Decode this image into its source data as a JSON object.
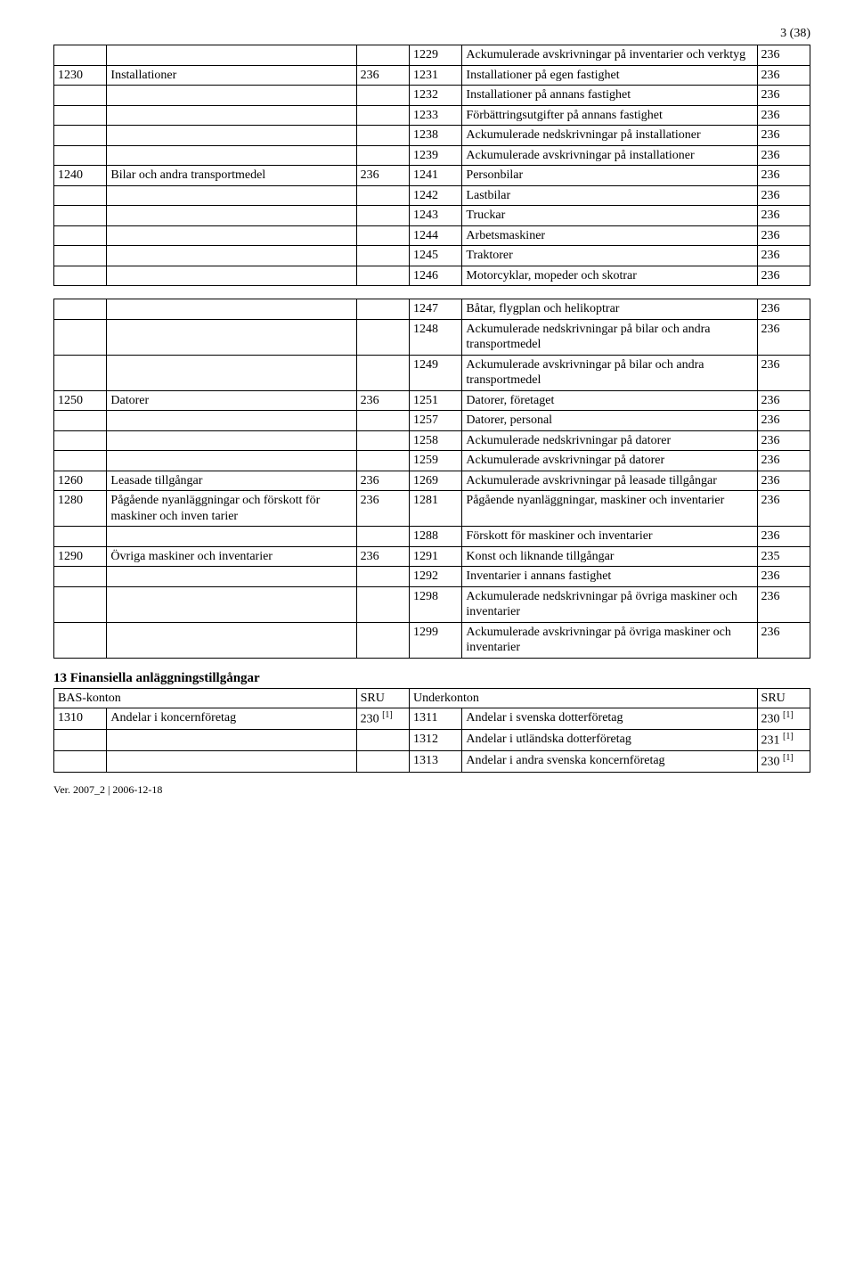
{
  "page_number": "3 (38)",
  "footer": "Ver. 2007_2 | 2006-12-18",
  "section1_rows": [
    [
      "",
      "",
      "",
      "1229",
      "Ackumulerade avskrivningar på inventarier och verktyg",
      "236"
    ],
    [
      "1230",
      "Installationer",
      "236",
      "1231",
      "Installationer på egen fastighet",
      "236"
    ],
    [
      "",
      "",
      "",
      "1232",
      "Installationer på annans fastighet",
      "236"
    ],
    [
      "",
      "",
      "",
      "1233",
      "Förbättringsutgifter på annans fastighet",
      "236"
    ],
    [
      "",
      "",
      "",
      "1238",
      "Ackumulerade nedskrivningar på installationer",
      "236"
    ],
    [
      "",
      "",
      "",
      "1239",
      "Ackumulerade avskrivningar på installationer",
      "236"
    ],
    [
      "1240",
      "Bilar och andra transportmedel",
      "236",
      "1241",
      "Personbilar",
      "236"
    ],
    [
      "",
      "",
      "",
      "1242",
      "Lastbilar",
      "236"
    ],
    [
      "",
      "",
      "",
      "1243",
      "Truckar",
      "236"
    ],
    [
      "",
      "",
      "",
      "1244",
      "Arbetsmaskiner",
      "236"
    ],
    [
      "",
      "",
      "",
      "1245",
      "Traktorer",
      "236"
    ],
    [
      "",
      "",
      "",
      "1246",
      "Motorcyklar, mopeder och skotrar",
      "236"
    ]
  ],
  "section2_rows": [
    [
      "",
      "",
      "",
      "1247",
      "Båtar, flygplan och helikoptrar",
      "236"
    ],
    [
      "",
      "",
      "",
      "1248",
      "Ackumulerade nedskrivningar på bilar och andra transportmedel",
      "236"
    ],
    [
      "",
      "",
      "",
      "1249",
      "Ackumulerade avskrivningar på bilar och andra transportmedel",
      "236"
    ],
    [
      "1250",
      "Datorer",
      "236",
      "1251",
      "Datorer, företaget",
      "236"
    ],
    [
      "",
      "",
      "",
      "1257",
      "Datorer, personal",
      "236"
    ],
    [
      "",
      "",
      "",
      "1258",
      "Ackumulerade nedskrivningar på datorer",
      "236"
    ],
    [
      "",
      "",
      "",
      "1259",
      "Ackumulerade avskrivningar på datorer",
      "236"
    ],
    [
      "1260",
      "Leasade tillgångar",
      "236",
      "1269",
      "Ackumulerade avskrivningar på leasade tillgångar",
      "236"
    ],
    [
      "1280",
      "Pågående nyanläggningar och förskott för maskiner och inven tarier",
      "236",
      "1281",
      "Pågående nyanläggningar, maskiner och inventarier",
      "236"
    ],
    [
      "",
      "",
      "",
      "1288",
      "Förskott för maskiner och inventarier",
      "236"
    ],
    [
      "1290",
      "Övriga maskiner och inventarier",
      "236",
      "1291",
      "Konst och liknande tillgångar",
      "235"
    ],
    [
      "",
      "",
      "",
      "1292",
      "Inventarier i annans fastighet",
      "236"
    ],
    [
      "",
      "",
      "",
      "1298",
      "Ackumulerade nedskrivningar på övriga maskiner och inventarier",
      "236"
    ],
    [
      "",
      "",
      "",
      "1299",
      "Ackumulerade avskrivningar på övriga maskiner och inventarier",
      "236"
    ]
  ],
  "section3_heading": "13 Finansiella anläggningstillgångar",
  "section3_header": [
    "BAS-konton",
    "",
    "SRU",
    "Underkonton",
    "",
    "SRU"
  ],
  "section3_rows": [
    [
      "1310",
      "Andelar i koncernföretag",
      "230 [1]",
      "1311",
      "Andelar i svenska dotterföretag",
      "230 [1]"
    ],
    [
      "",
      "",
      "",
      "1312",
      "Andelar i utländska dotterföretag",
      "231 [1]"
    ],
    [
      "",
      "",
      "",
      "1313",
      "Andelar i andra svenska koncernföretag",
      "230 [1]"
    ]
  ]
}
